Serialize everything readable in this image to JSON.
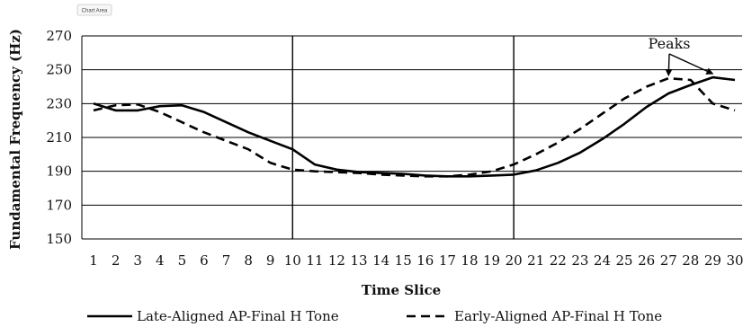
{
  "chart_area_label": "Chart Area",
  "chart_data": {
    "type": "line",
    "title": "",
    "xlabel": "Time Slice",
    "ylabel": "Fundamental Frequency (Hz)",
    "x": [
      1,
      2,
      3,
      4,
      5,
      6,
      7,
      8,
      9,
      10,
      11,
      12,
      13,
      14,
      15,
      16,
      17,
      18,
      19,
      20,
      21,
      22,
      23,
      24,
      25,
      26,
      27,
      28,
      29,
      30
    ],
    "xlim": [
      1,
      30
    ],
    "ylim": [
      150,
      270
    ],
    "yticks": [
      150,
      170,
      190,
      210,
      230,
      250,
      270
    ],
    "grid": "horizontal",
    "legend_position": "bottom",
    "vertical_markers": [
      10,
      20
    ],
    "series": [
      {
        "name": "Late-Aligned AP-Final H Tone",
        "style": "solid",
        "values": [
          230,
          226,
          226,
          228.5,
          229,
          225,
          219,
          213,
          208,
          203,
          194,
          191,
          189.5,
          189,
          188.5,
          187.5,
          187,
          187,
          187.5,
          188,
          190.5,
          195,
          201,
          209,
          218,
          228,
          236,
          241,
          245.5,
          244
        ]
      },
      {
        "name": "Early-Aligned AP-Final H Tone",
        "style": "dashed",
        "values": [
          226,
          229,
          229.5,
          225,
          219,
          213,
          208,
          203,
          195,
          191,
          190,
          189.5,
          189,
          188,
          187.5,
          187,
          187,
          188,
          190,
          194,
          200,
          207,
          215,
          224,
          233,
          240,
          245,
          244,
          230,
          226
        ]
      }
    ],
    "annotations": [
      {
        "text": "Peaks",
        "targets": [
          [
            27,
            244.5
          ],
          [
            29,
            245.5
          ]
        ]
      }
    ]
  }
}
